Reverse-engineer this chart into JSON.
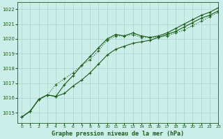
{
  "title": "Graphe pression niveau de la mer (hPa)",
  "bg_color": "#cceee8",
  "grid_color": "#aad4ce",
  "line_color": "#1a5c1a",
  "xlim": [
    -0.5,
    23
  ],
  "ylim": [
    1014.3,
    1022.5
  ],
  "yticks": [
    1015,
    1016,
    1017,
    1018,
    1019,
    1020,
    1021,
    1022
  ],
  "xticks": [
    0,
    1,
    2,
    3,
    4,
    5,
    6,
    7,
    8,
    9,
    10,
    11,
    12,
    13,
    14,
    15,
    16,
    17,
    18,
    19,
    20,
    21,
    22,
    23
  ],
  "series1": [
    1014.7,
    1015.1,
    1015.9,
    1016.2,
    1016.1,
    1016.3,
    1016.8,
    1017.2,
    1017.7,
    1018.3,
    1018.9,
    1019.3,
    1019.5,
    1019.7,
    1019.8,
    1019.9,
    1020.1,
    1020.3,
    1020.5,
    1020.8,
    1021.1,
    1021.4,
    1021.6,
    1021.9
  ],
  "series2": [
    1014.7,
    1015.1,
    1015.9,
    1016.2,
    1016.9,
    1017.3,
    1017.7,
    1018.2,
    1018.6,
    1019.2,
    1019.9,
    1020.2,
    1020.2,
    1020.3,
    1020.1,
    1020.1,
    1020.1,
    1020.2,
    1020.4,
    1020.6,
    1020.9,
    1021.2,
    1021.5,
    1021.8
  ],
  "series3": [
    1014.7,
    1015.1,
    1015.9,
    1016.2,
    1016.1,
    1016.9,
    1017.5,
    1018.2,
    1018.8,
    1019.4,
    1020.0,
    1020.3,
    1020.2,
    1020.4,
    1020.2,
    1020.1,
    1020.2,
    1020.4,
    1020.7,
    1021.0,
    1021.3,
    1021.6,
    1021.8,
    1022.1
  ]
}
